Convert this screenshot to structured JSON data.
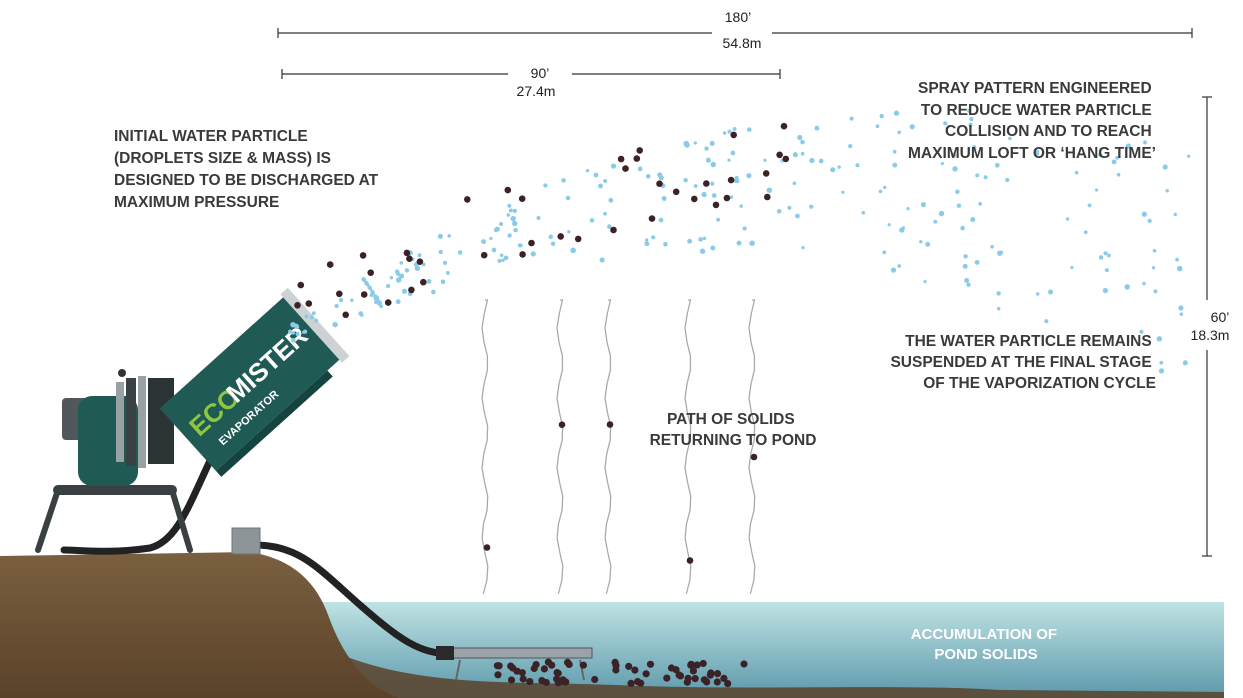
{
  "dimensions": {
    "overall_width_ft": "180’",
    "overall_width_m": "54.8m",
    "half_width_ft": "90’",
    "half_width_m": "27.4m",
    "height_ft": "60’",
    "height_m": "18.3m"
  },
  "annotations": {
    "initial_particle": [
      "INITIAL WATER PARTICLE",
      "(DROPLETS SIZE & MASS) IS",
      "DESIGNED TO BE DISCHARGED AT",
      "MAXIMUM PRESSURE"
    ],
    "spray_pattern": [
      "SPRAY PATTERN ENGINEERED",
      "TO REDUCE WATER PARTICLE",
      "COLLISION AND TO REACH",
      "MAXIMUM LOFT OR ‘HANG TIME’"
    ],
    "suspended": [
      "THE WATER PARTICLE REMAINS",
      "SUSPENDED AT THE FINAL STAGE",
      "OF THE VAPORIZATION CYCLE"
    ],
    "solids_path": [
      "PATH OF SOLIDS",
      "RETURNING TO POND"
    ],
    "pond_solids": [
      "ACCUMULATION OF",
      "POND SOLIDS"
    ]
  },
  "machine": {
    "brand_eco": "ECO",
    "brand_mister": "MISTER",
    "brand_sub": "EVAPORATOR"
  },
  "colors": {
    "water_droplet": "#8ccbe8",
    "solid_particle": "#3b2226",
    "machine_green": "#1f5a55",
    "brand_green": "#8dc63f",
    "pond_top": "#a9d8dc",
    "pond_bottom": "#5f9fb0",
    "ground": "#6b5235"
  }
}
